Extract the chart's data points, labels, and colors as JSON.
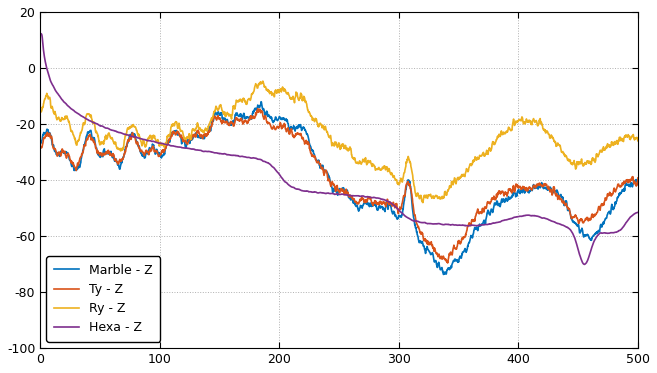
{
  "title": "",
  "xlabel": "",
  "ylabel": "",
  "background_color": "#ffffff",
  "axes_background_color": "#ffffff",
  "grid_color": "#b0b0b0",
  "text_color": "#000000",
  "spine_color": "#000000",
  "line_colors": {
    "marble": "#0072BD",
    "ty": "#D95319",
    "ry": "#EDB120",
    "hexa": "#7E2F8E"
  },
  "legend_labels": [
    "Marble - Z",
    "Ty - Z",
    "Ry - Z",
    "Hexa - Z"
  ],
  "xlim": [
    0,
    500
  ],
  "ylim": [
    -100,
    20
  ],
  "yticks": [
    -100,
    -80,
    -60,
    -40,
    -20,
    0,
    20
  ],
  "xticks": [
    0,
    100,
    200,
    300,
    400,
    500
  ],
  "line_width": 1.2
}
